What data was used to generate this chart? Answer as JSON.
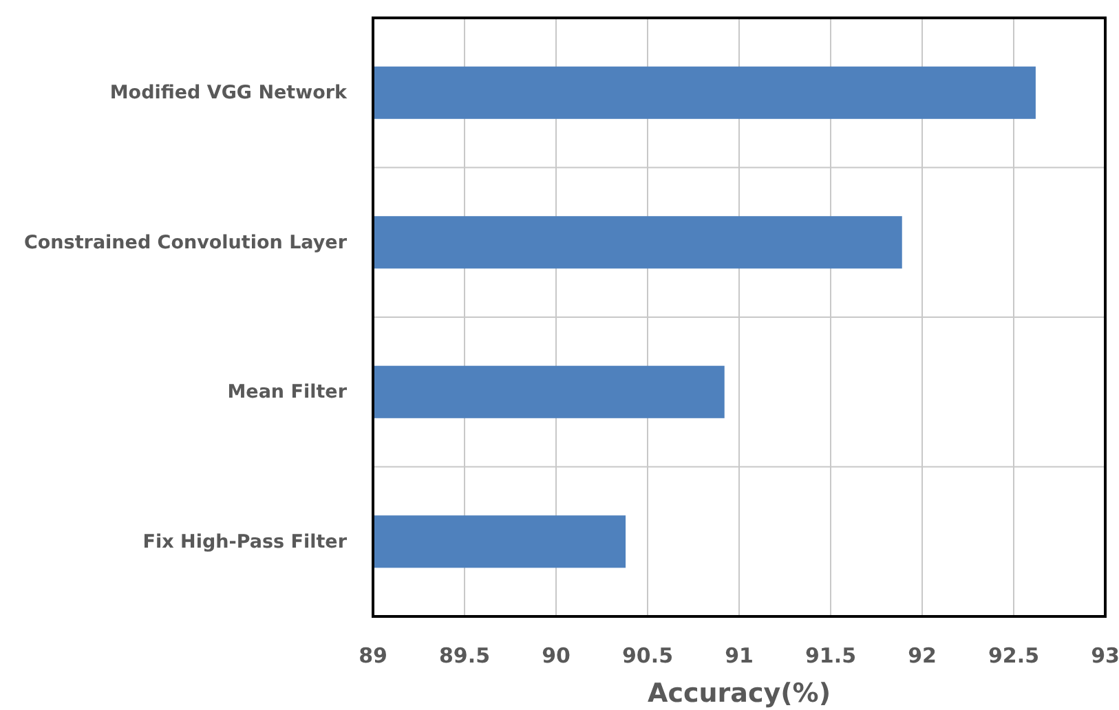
{
  "chart_data": {
    "type": "bar",
    "orientation": "horizontal",
    "xlabel": "Accuracy(%)",
    "categories": [
      "Modified VGG Network",
      "Constrained Convolution Layer",
      "Mean Filter",
      "Fix High-Pass Filter"
    ],
    "values": [
      92.62,
      91.89,
      90.92,
      90.38
    ],
    "color": "#4f81bd",
    "xlim": [
      89,
      93
    ],
    "xticks": [
      89,
      89.5,
      90,
      90.5,
      91,
      91.5,
      92,
      92.5,
      93
    ],
    "grid": true
  }
}
